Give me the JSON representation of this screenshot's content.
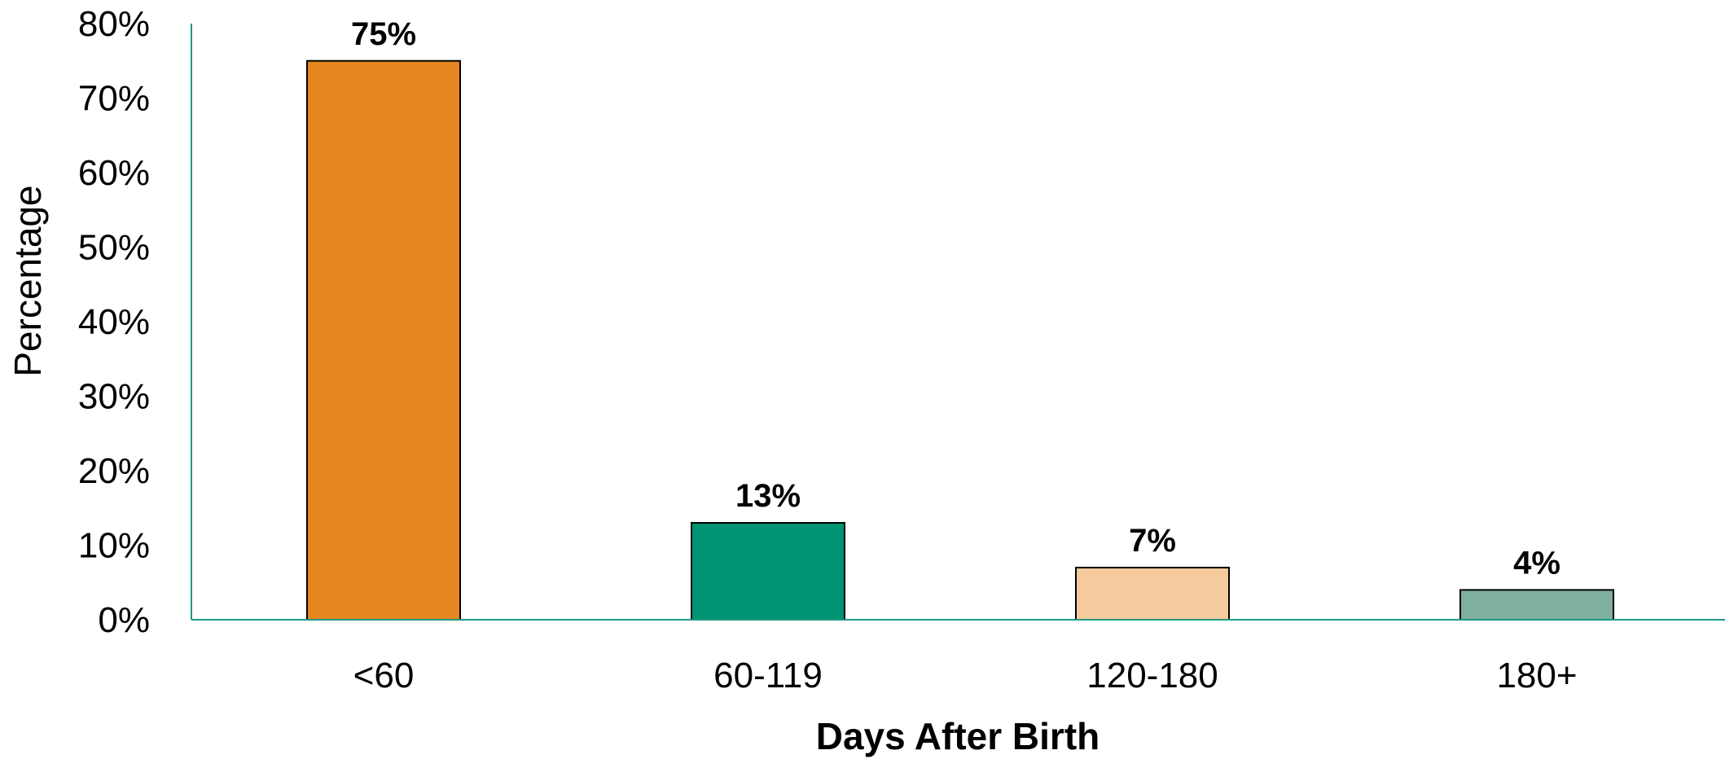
{
  "chart_data": {
    "type": "bar",
    "title": "",
    "xlabel": "Days After Birth",
    "ylabel": "Percentage",
    "categories": [
      "<60",
      "60-119",
      "120-180",
      "180+"
    ],
    "values": [
      75,
      13,
      7,
      4
    ],
    "data_labels": [
      "75%",
      "13%",
      "7%",
      "4%"
    ],
    "bar_colors": [
      "#E58620",
      "#009473",
      "#F5CB9E",
      "#7EAF9F"
    ],
    "axis_color": "#1E9A85",
    "ylim": [
      0,
      80
    ],
    "yticks": [
      0,
      10,
      20,
      30,
      40,
      50,
      60,
      70,
      80
    ],
    "ytick_labels": [
      "0%",
      "10%",
      "20%",
      "30%",
      "40%",
      "50%",
      "60%",
      "70%",
      "80%"
    ],
    "grid": false,
    "legend": "none"
  }
}
